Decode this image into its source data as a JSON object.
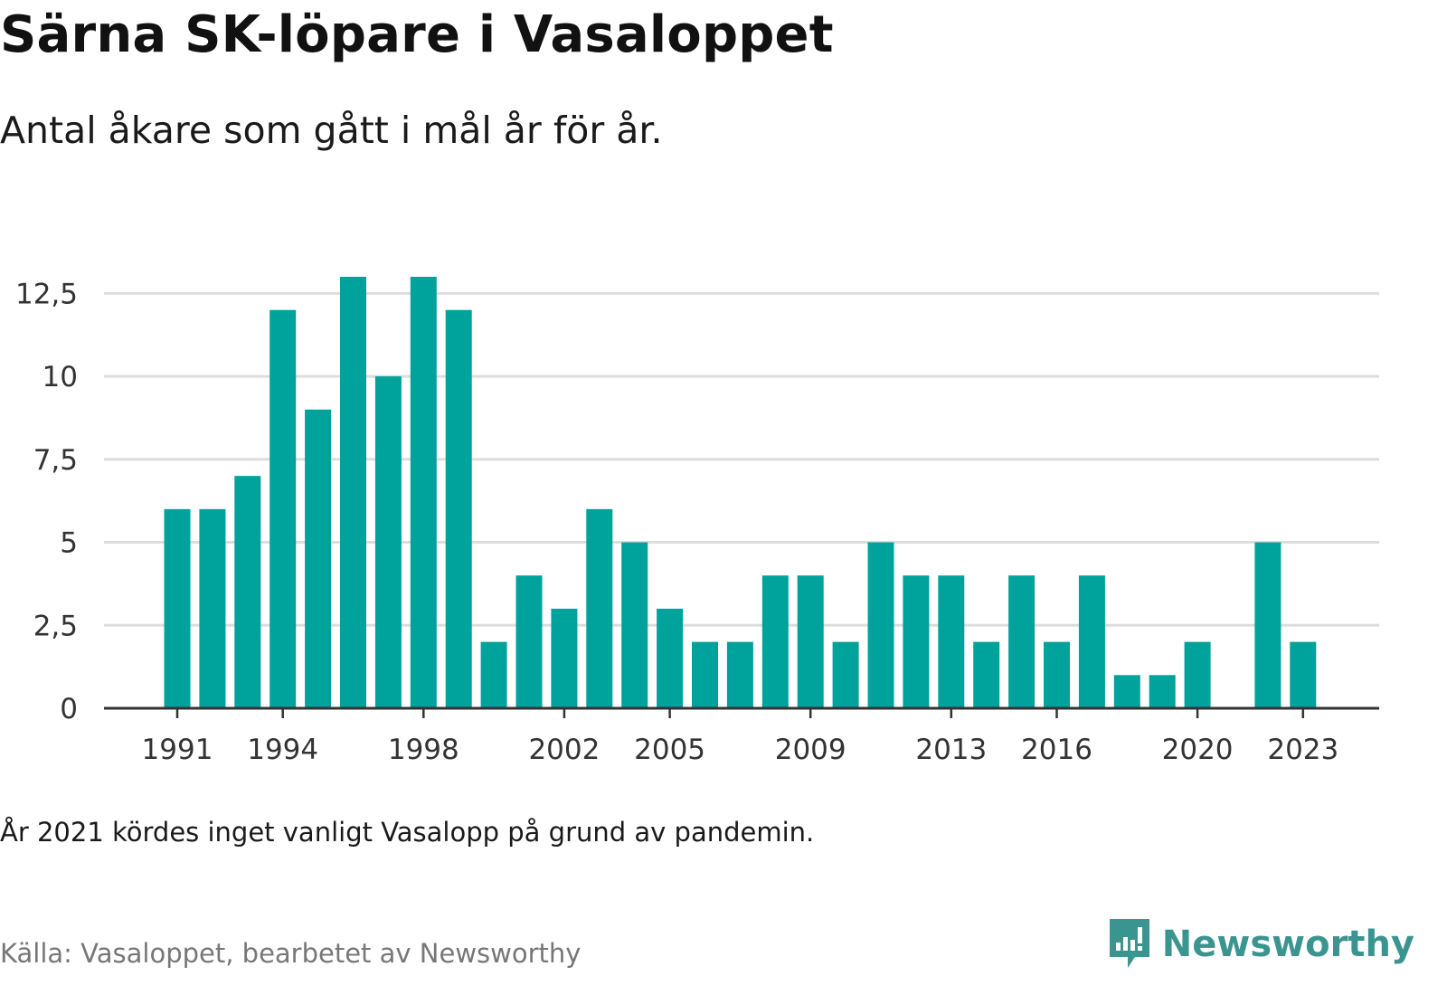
{
  "header": {
    "title": "Särna SK-löpare i Vasaloppet",
    "subtitle": "Antal åkare som gått i mål år för år."
  },
  "footer": {
    "note": "År 2021 kördes inget vanligt Vasalopp på grund av pandemin.",
    "source": "Källa: Vasaloppet, bearbetet av Newsworthy",
    "brand": "Newsworthy"
  },
  "colors": {
    "bar": "#00a39b",
    "grid": "#dddddd",
    "axis": "#333333",
    "brand": "#3a9590"
  },
  "icons": {
    "brand_logo": "newsworthy-logo-icon"
  },
  "chart_data": {
    "type": "bar",
    "x": [
      1991,
      1992,
      1993,
      1994,
      1995,
      1996,
      1997,
      1998,
      1999,
      2000,
      2001,
      2002,
      2003,
      2004,
      2005,
      2006,
      2007,
      2008,
      2009,
      2010,
      2011,
      2012,
      2013,
      2014,
      2015,
      2016,
      2017,
      2018,
      2019,
      2020,
      2021,
      2022,
      2023
    ],
    "values": [
      6,
      6,
      7,
      12,
      9,
      13,
      10,
      13,
      12,
      2,
      4,
      3,
      6,
      5,
      3,
      2,
      2,
      4,
      4,
      2,
      5,
      4,
      4,
      2,
      4,
      2,
      4,
      1,
      1,
      2,
      null,
      5,
      2
    ],
    "x_tick_labels": [
      "1991",
      "1994",
      "1998",
      "2002",
      "2005",
      "2009",
      "2013",
      "2016",
      "2020",
      "2023"
    ],
    "x_tick_years": [
      1991,
      1994,
      1998,
      2002,
      2005,
      2009,
      2013,
      2016,
      2020,
      2023
    ],
    "y_ticks": [
      0,
      2.5,
      5,
      7.5,
      10,
      12.5
    ],
    "y_tick_labels": [
      "0",
      "2,5",
      "5",
      "7,5",
      "10",
      "12,5"
    ],
    "ylim": [
      0,
      13
    ],
    "grid": true,
    "legend": "none"
  }
}
